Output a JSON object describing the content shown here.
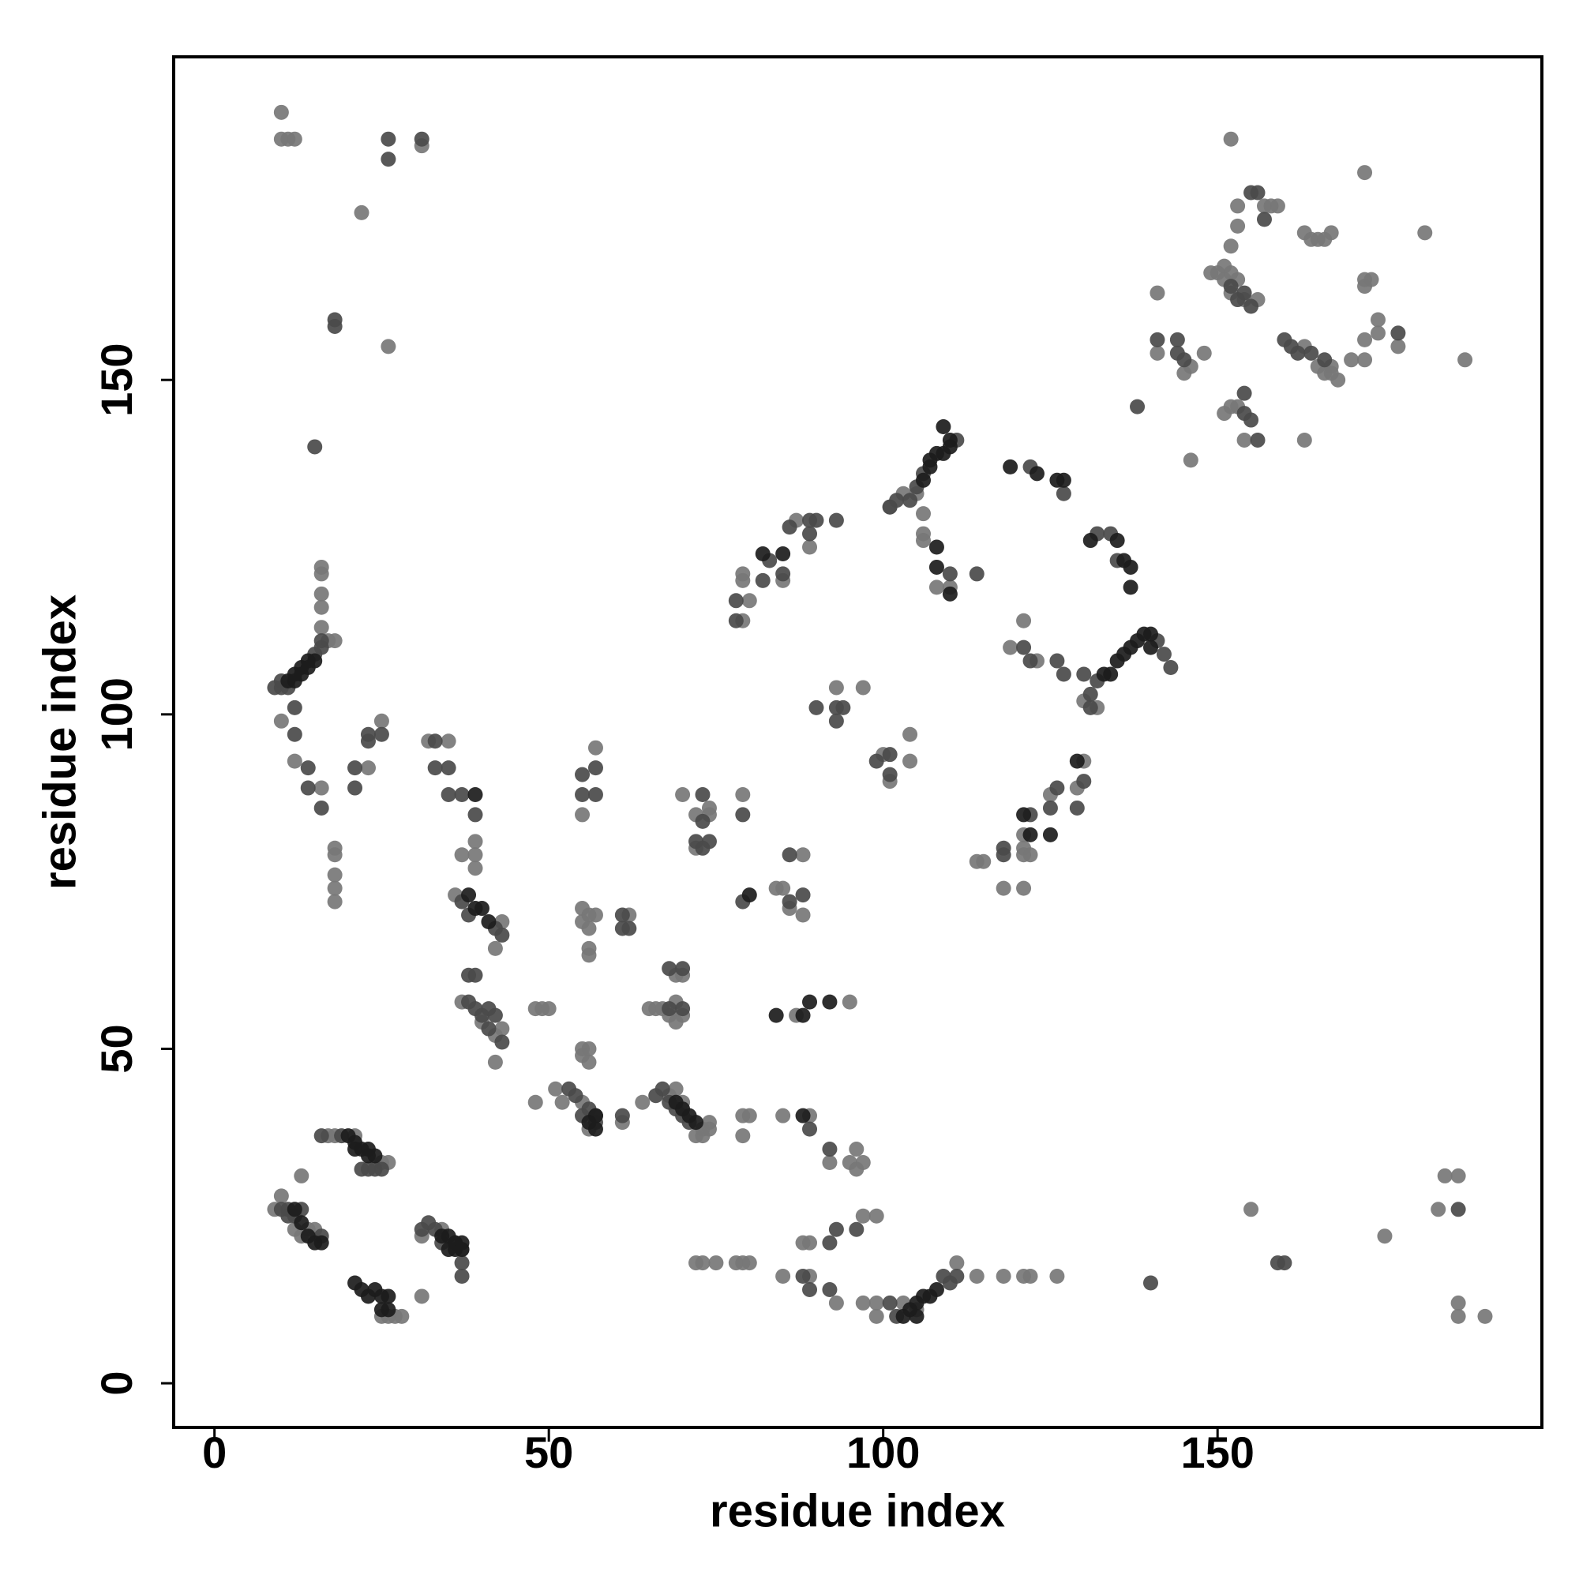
{
  "chart_data": {
    "type": "scatter",
    "xlabel": "residue index",
    "ylabel": "residue index",
    "xlim": [
      -6.1,
      198.5
    ],
    "ylim": [
      -6.6,
      198.3
    ],
    "xticks": [
      0,
      50,
      100,
      150
    ],
    "yticks": [
      0,
      50,
      100,
      150
    ],
    "grid": false,
    "series": [
      {
        "color": "#777777",
        "x": [
          10,
          10,
          11,
          12,
          31,
          22,
          26,
          16,
          16,
          16,
          16,
          16,
          17,
          18,
          10,
          12,
          16,
          18,
          18,
          18,
          18,
          18,
          25,
          23,
          32,
          35,
          39,
          39,
          37,
          39,
          36,
          43,
          42,
          37,
          40,
          42,
          43,
          42,
          48,
          49,
          50,
          48,
          51,
          52,
          55,
          56,
          61,
          55,
          56,
          57,
          55,
          56,
          56,
          56,
          62,
          57,
          55,
          55,
          56,
          55,
          56,
          65,
          66,
          64,
          68,
          69,
          70,
          72,
          73,
          74,
          74,
          73,
          67,
          68,
          69,
          70,
          69,
          69,
          70,
          70,
          74,
          72,
          74,
          72,
          72,
          73,
          75,
          78,
          79,
          80,
          79,
          79,
          80,
          79,
          79,
          79,
          80,
          79,
          85,
          85,
          87,
          89,
          88,
          84,
          85,
          86,
          88,
          87,
          95,
          89,
          92,
          95,
          96,
          97,
          96,
          88,
          89,
          97,
          99,
          85,
          89,
          93,
          97,
          99,
          99,
          103,
          111,
          114,
          118,
          121,
          122,
          126,
          93,
          97,
          100,
          104,
          104,
          101,
          103,
          105,
          106,
          106,
          106,
          108,
          110,
          119,
          121,
          123,
          130,
          132,
          114,
          115,
          118,
          121,
          121,
          121,
          122,
          121,
          125,
          129,
          130,
          141,
          141,
          146,
          145,
          148,
          146,
          149,
          150,
          151,
          152,
          151,
          153,
          152,
          154,
          156,
          152,
          153,
          153,
          157,
          158,
          159,
          153,
          152,
          151,
          154,
          152,
          163,
          165,
          167,
          167,
          166,
          168,
          170,
          172,
          172,
          174,
          174,
          177,
          172,
          172,
          173,
          172,
          163,
          164,
          165,
          166,
          167,
          181,
          187,
          163,
          155,
          175,
          183,
          184,
          186,
          186,
          186,
          190,
          9,
          10,
          12,
          13,
          14,
          15,
          13,
          17,
          18,
          21,
          25,
          26,
          25,
          26,
          27,
          28,
          31,
          31,
          34,
          37,
          105,
          101
        ],
        "values": [
          190,
          186,
          186,
          186,
          185,
          175,
          155,
          113,
          116,
          118,
          121,
          122,
          111,
          111,
          99,
          93,
          89,
          80,
          79,
          76,
          74,
          72,
          99,
          92,
          96,
          96,
          81,
          79,
          79,
          77,
          73,
          69,
          65,
          57,
          54,
          52,
          53,
          48,
          56,
          56,
          56,
          42,
          44,
          42,
          42,
          38,
          39,
          71,
          70,
          70,
          69,
          68,
          65,
          64,
          70,
          95,
          85,
          50,
          50,
          49,
          48,
          56,
          56,
          42,
          43,
          44,
          42,
          37,
          38,
          39,
          38,
          37,
          56,
          55,
          57,
          55,
          54,
          61,
          61,
          88,
          86,
          85,
          85,
          80,
          18,
          18,
          18,
          18,
          18,
          18,
          120,
          121,
          117,
          114,
          88,
          40,
          40,
          37,
          40,
          120,
          129,
          125,
          79,
          74,
          74,
          71,
          70,
          55,
          57,
          40,
          33,
          33,
          35,
          33,
          32,
          21,
          21,
          25,
          25,
          16,
          16,
          12,
          12,
          12,
          10,
          12,
          18,
          16,
          16,
          16,
          16,
          16,
          104,
          104,
          94,
          93,
          97,
          90,
          133,
          133,
          130,
          127,
          126,
          119,
          119,
          110,
          114,
          108,
          102,
          101,
          78,
          78,
          74,
          80,
          79,
          74,
          79,
          82,
          88,
          89,
          93,
          163,
          154,
          152,
          151,
          154,
          138,
          166,
          166,
          167,
          166,
          165,
          165,
          163,
          162,
          162,
          170,
          176,
          173,
          176,
          176,
          176,
          146,
          146,
          145,
          141,
          186,
          155,
          152,
          152,
          151,
          151,
          150,
          153,
          153,
          156,
          157,
          159,
          155,
          164,
          165,
          165,
          181,
          172,
          171,
          171,
          171,
          172,
          172,
          153,
          141,
          26,
          22,
          26,
          31,
          31,
          12,
          10,
          10,
          26,
          28,
          23,
          22,
          23,
          23,
          31,
          37,
          37,
          37,
          33,
          33,
          10,
          10,
          10,
          10,
          13,
          22,
          23,
          20,
          11,
          131
        ]
      },
      {
        "color": "#4a4a4a",
        "x": [
          9,
          10,
          10,
          11,
          15,
          16,
          16,
          14,
          14,
          16,
          12,
          12,
          15,
          18,
          18,
          26,
          26,
          31,
          23,
          23,
          25,
          21,
          21,
          33,
          35,
          35,
          37,
          39,
          33,
          37,
          38,
          42,
          43,
          38,
          39,
          38,
          39,
          40,
          41,
          42,
          41,
          43,
          55,
          57,
          61,
          55,
          57,
          57,
          55,
          61,
          61,
          62,
          68,
          70,
          68,
          70,
          73,
          73,
          72,
          73,
          74,
          78,
          78,
          79,
          79,
          82,
          83,
          85,
          86,
          89,
          90,
          93,
          89,
          86,
          88,
          86,
          88,
          89,
          92,
          92,
          93,
          92,
          89,
          96,
          101,
          102,
          90,
          93,
          93,
          94,
          99,
          101,
          101,
          101,
          102,
          104,
          105,
          106,
          111,
          110,
          114,
          122,
          127,
          132,
          134,
          135,
          121,
          122,
          126,
          127,
          130,
          131,
          132,
          141,
          142,
          143,
          131,
          118,
          118,
          122,
          125,
          126,
          130,
          129,
          140,
          138,
          141,
          144,
          144,
          145,
          152,
          153,
          154,
          155,
          155,
          156,
          157,
          154,
          154,
          155,
          156,
          160,
          161,
          162,
          164,
          166,
          177,
          159,
          160,
          186,
          109,
          110,
          111,
          10,
          11,
          11,
          12,
          13,
          16,
          16,
          19,
          22,
          23,
          24,
          25,
          31,
          32,
          33,
          34,
          36,
          37,
          37,
          66,
          67,
          68,
          69,
          70,
          71,
          53,
          54,
          56,
          57
        ],
        "values": [
          104,
          104,
          105,
          104,
          109,
          110,
          111,
          92,
          89,
          86,
          97,
          101,
          140,
          159,
          158,
          186,
          183,
          186,
          96,
          97,
          97,
          92,
          89,
          92,
          92,
          88,
          88,
          85,
          96,
          72,
          70,
          68,
          67,
          61,
          61,
          57,
          56,
          55,
          56,
          55,
          53,
          51,
          40,
          40,
          40,
          91,
          92,
          88,
          88,
          70,
          68,
          68,
          62,
          62,
          56,
          56,
          88,
          84,
          81,
          80,
          81,
          117,
          114,
          85,
          72,
          120,
          123,
          121,
          128,
          129,
          129,
          129,
          127,
          79,
          73,
          72,
          16,
          14,
          14,
          21,
          23,
          35,
          38,
          23,
          12,
          10,
          101,
          101,
          99,
          101,
          93,
          94,
          91,
          131,
          132,
          132,
          134,
          136,
          141,
          121,
          121,
          137,
          133,
          127,
          127,
          123,
          110,
          108,
          108,
          106,
          106,
          103,
          105,
          111,
          109,
          107,
          101,
          80,
          79,
          85,
          86,
          89,
          90,
          86,
          15,
          146,
          156,
          156,
          154,
          153,
          164,
          162,
          163,
          161,
          178,
          178,
          174,
          148,
          145,
          144,
          141,
          156,
          155,
          154,
          154,
          153,
          157,
          18,
          18,
          26,
          16,
          15,
          16,
          26,
          26,
          25,
          25,
          26,
          22,
          37,
          37,
          32,
          32,
          32,
          32,
          23,
          24,
          23,
          21,
          21,
          18,
          16,
          43,
          44,
          42,
          41,
          40,
          39,
          44,
          43,
          41,
          39
        ]
      },
      {
        "color": "#1c1c1c",
        "x": [
          11,
          12,
          12,
          13,
          13,
          14,
          14,
          15,
          20,
          21,
          21,
          22,
          23,
          23,
          24,
          21,
          22,
          23,
          24,
          25,
          25,
          26,
          26,
          34,
          35,
          35,
          36,
          36,
          37,
          37,
          38,
          39,
          40,
          39,
          41,
          56,
          57,
          57,
          69,
          70,
          71,
          72,
          103,
          104,
          105,
          105,
          106,
          107,
          108,
          106,
          107,
          107,
          108,
          109,
          109,
          110,
          110,
          108,
          108,
          110,
          119,
          123,
          126,
          127,
          131,
          135,
          136,
          137,
          137,
          134,
          135,
          136,
          137,
          138,
          139,
          140,
          140,
          133,
          121,
          122,
          125,
          129,
          80,
          82,
          85,
          88,
          89,
          92,
          88,
          84,
          12,
          13,
          14,
          15,
          16
        ],
        "values": [
          105,
          106,
          105,
          107,
          106,
          108,
          107,
          108,
          37,
          36,
          35,
          35,
          35,
          34,
          34,
          15,
          14,
          13,
          14,
          13,
          11,
          13,
          11,
          22,
          22,
          20,
          21,
          20,
          21,
          20,
          73,
          71,
          71,
          88,
          69,
          39,
          40,
          38,
          42,
          41,
          40,
          39,
          10,
          11,
          10,
          12,
          13,
          13,
          14,
          135,
          137,
          138,
          139,
          139,
          143,
          140,
          141,
          125,
          122,
          118,
          137,
          136,
          135,
          135,
          126,
          126,
          123,
          122,
          119,
          106,
          108,
          109,
          110,
          111,
          112,
          112,
          110,
          106,
          85,
          82,
          82,
          93,
          73,
          124,
          124,
          40,
          57,
          57,
          55,
          55,
          26,
          24,
          22,
          21,
          21
        ]
      }
    ]
  }
}
